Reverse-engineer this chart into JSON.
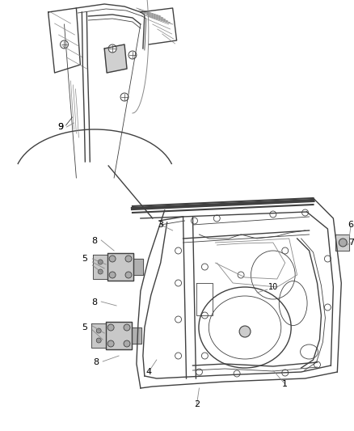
{
  "bg_color": "#ffffff",
  "fig_width": 4.38,
  "fig_height": 5.33,
  "dpi": 100,
  "line_color": "#404040",
  "line_color_light": "#888888",
  "hinge_color": "#c8c8c8"
}
